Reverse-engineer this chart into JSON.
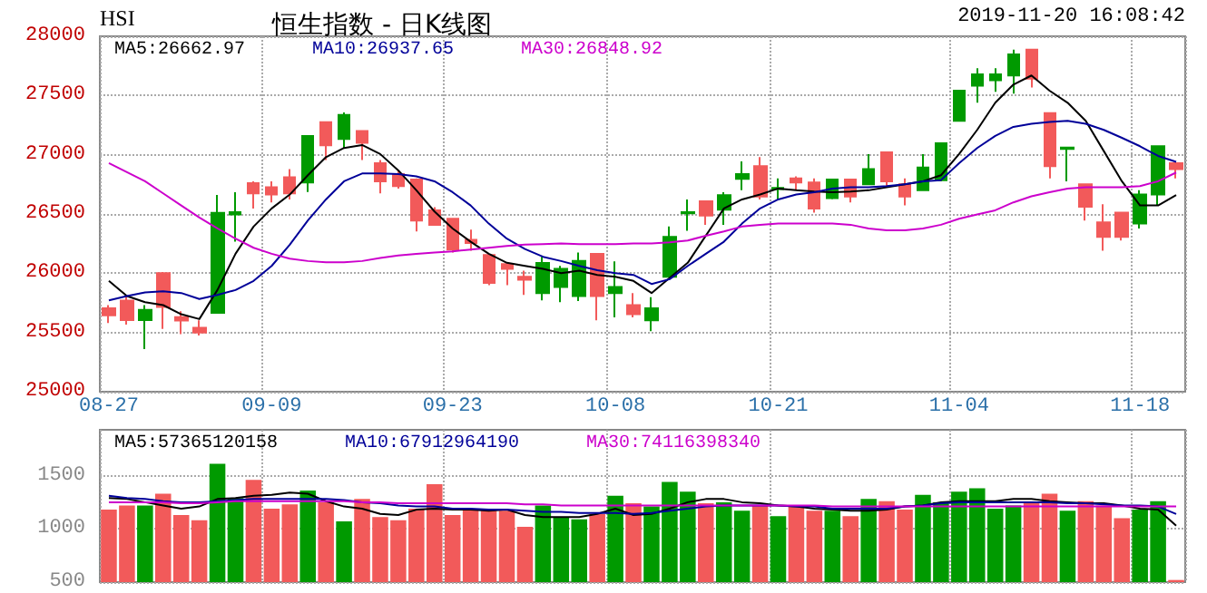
{
  "chart_data": [
    {
      "type": "candlestick",
      "title": "恒生指数 - 日K线图",
      "annotations": [
        "HSI",
        "2019-11-20 16:08:42"
      ],
      "categories": [
        "08-27",
        null,
        null,
        null,
        null,
        null,
        null,
        null,
        null,
        "09-09",
        null,
        null,
        null,
        null,
        null,
        null,
        null,
        null,
        null,
        "09-23",
        null,
        null,
        null,
        null,
        null,
        null,
        null,
        null,
        "10-08",
        null,
        null,
        null,
        null,
        null,
        null,
        null,
        null,
        "10-21",
        null,
        null,
        null,
        null,
        null,
        null,
        null,
        null,
        null,
        "11-04",
        null,
        null,
        null,
        null,
        null,
        null,
        null,
        null,
        null,
        "11-18",
        null,
        null
      ],
      "ohlc": [
        [
          25705,
          25730,
          25580,
          25645
        ],
        [
          25770,
          25807,
          25567,
          25605
        ],
        [
          25605,
          25730,
          25360,
          25690
        ],
        [
          26000,
          26010,
          25530,
          25715
        ],
        [
          25630,
          25680,
          25486,
          25600
        ],
        [
          25540,
          25603,
          25475,
          25500
        ],
        [
          25665,
          26660,
          25665,
          26510
        ],
        [
          26496,
          26684,
          26266,
          26515
        ],
        [
          26760,
          26776,
          26546,
          26675
        ],
        [
          26725,
          26776,
          26597,
          26665
        ],
        [
          26810,
          26878,
          26623,
          26675
        ],
        [
          26765,
          27165,
          26685,
          27158
        ],
        [
          27275,
          27280,
          26955,
          27080
        ],
        [
          27133,
          27357,
          27056,
          27337
        ],
        [
          27200,
          27205,
          26955,
          27100
        ],
        [
          26929,
          26955,
          26674,
          26776
        ],
        [
          26837,
          26863,
          26715,
          26735
        ],
        [
          26791,
          26800,
          26353,
          26445
        ],
        [
          26531,
          26557,
          26400,
          26409
        ],
        [
          26460,
          26465,
          26174,
          26200
        ],
        [
          26281,
          26368,
          26190,
          26256
        ],
        [
          26154,
          26160,
          25899,
          25919
        ],
        [
          26077,
          26080,
          25899,
          26037
        ],
        [
          25970,
          26021,
          25817,
          25945
        ],
        [
          25832,
          26138,
          25771,
          26087
        ],
        [
          25883,
          26062,
          25756,
          26037
        ],
        [
          25807,
          26174,
          25766,
          26103
        ],
        [
          26164,
          26170,
          25603,
          25807
        ],
        [
          25832,
          26100,
          25628,
          25883
        ],
        [
          25730,
          25832,
          25628,
          25654
        ],
        [
          25603,
          25797,
          25511,
          25705
        ],
        [
          25970,
          26394,
          25965,
          26307
        ],
        [
          26505,
          26623,
          26358,
          26515
        ],
        [
          26608,
          26612,
          26409,
          26486
        ],
        [
          26537,
          26684,
          26409,
          26659
        ],
        [
          26796,
          26944,
          26700,
          26837
        ],
        [
          26903,
          26980,
          26623,
          26648
        ],
        [
          26710,
          26801,
          26623,
          26720
        ],
        [
          26801,
          26817,
          26700,
          26766
        ],
        [
          26766,
          26801,
          26511,
          26546
        ],
        [
          26633,
          26795,
          26625,
          26791
        ],
        [
          26791,
          26795,
          26597,
          26648
        ],
        [
          26750,
          27005,
          26745,
          26878
        ],
        [
          27020,
          27025,
          26725,
          26776
        ],
        [
          26750,
          26801,
          26572,
          26648
        ],
        [
          26700,
          27005,
          26695,
          26893
        ],
        [
          26786,
          27100,
          26775,
          27097
        ],
        [
          27286,
          27545,
          27280,
          27541
        ],
        [
          27582,
          27730,
          27439,
          27679
        ],
        [
          27628,
          27730,
          27531,
          27679
        ],
        [
          27669,
          27888,
          27516,
          27847
        ],
        [
          27888,
          27892,
          27567,
          27643
        ],
        [
          27352,
          27357,
          26801,
          26903
        ],
        [
          27050,
          27060,
          26776,
          27060
        ],
        [
          26750,
          26755,
          26444,
          26562
        ],
        [
          26429,
          26582,
          26190,
          26307
        ],
        [
          26511,
          26520,
          26276,
          26307
        ],
        [
          26419,
          26700,
          26378,
          26664
        ],
        [
          26664,
          27075,
          26572,
          27072
        ],
        [
          26929,
          26935,
          26801,
          26878
        ]
      ],
      "colors": [
        "#f25a5a",
        "#f25a5a",
        "#009a00",
        "#f25a5a",
        "#f25a5a",
        "#f25a5a",
        "#009a00",
        "#009a00",
        "#f25a5a",
        "#f25a5a",
        "#f25a5a",
        "#009a00",
        "#f25a5a",
        "#009a00",
        "#f25a5a",
        "#f25a5a",
        "#f25a5a",
        "#f25a5a",
        "#f25a5a",
        "#f25a5a",
        "#f25a5a",
        "#f25a5a",
        "#f25a5a",
        "#f25a5a",
        "#009a00",
        "#009a00",
        "#009a00",
        "#f25a5a",
        "#009a00",
        "#f25a5a",
        "#009a00",
        "#009a00",
        "#009a00",
        "#f25a5a",
        "#009a00",
        "#009a00",
        "#f25a5a",
        "#009a00",
        "#f25a5a",
        "#f25a5a",
        "#009a00",
        "#f25a5a",
        "#009a00",
        "#f25a5a",
        "#f25a5a",
        "#009a00",
        "#009a00",
        "#009a00",
        "#009a00",
        "#009a00",
        "#009a00",
        "#f25a5a",
        "#f25a5a",
        "#009a00",
        "#f25a5a",
        "#f25a5a",
        "#f25a5a",
        "#009a00",
        "#009a00",
        "#f25a5a"
      ],
      "series": [
        {
          "type": "line",
          "name": "MA5:26662.97",
          "color": "#000000",
          "values": [
            25935,
            25807,
            25756,
            25731,
            25654,
            25613,
            25858,
            26164,
            26394,
            26547,
            26664,
            26827,
            26980,
            27057,
            27082,
            27006,
            26868,
            26700,
            26521,
            26378,
            26266,
            26164,
            26088,
            26062,
            26037,
            26001,
            26021,
            25986,
            25970,
            25935,
            25833,
            25960,
            26088,
            26317,
            26547,
            26623,
            26664,
            26715,
            26700,
            26690,
            26684,
            26690,
            26700,
            26725,
            26751,
            26776,
            26827,
            27006,
            27210,
            27439,
            27592,
            27669,
            27541,
            27439,
            27286,
            27031,
            26776,
            26572,
            26572,
            26660
          ]
        },
        {
          "type": "line",
          "name": "MA10:26937.65",
          "color": "#000099",
          "values": [
            25771,
            25807,
            25838,
            25848,
            25833,
            25782,
            25817,
            25858,
            25935,
            26062,
            26241,
            26445,
            26623,
            26776,
            26842,
            26842,
            26837,
            26817,
            26776,
            26684,
            26572,
            26419,
            26292,
            26205,
            26139,
            26103,
            26062,
            26026,
            26001,
            25986,
            25909,
            25950,
            26062,
            26164,
            26266,
            26419,
            26547,
            26623,
            26664,
            26684,
            26715,
            26725,
            26725,
            26735,
            26751,
            26776,
            26786,
            26929,
            27057,
            27159,
            27235,
            27261,
            27276,
            27286,
            27261,
            27210,
            27143,
            27072,
            26990,
            26940
          ]
        },
        {
          "type": "line",
          "name": "MA30:26848.92",
          "color": "#cc00cc",
          "values": [
            26929,
            26853,
            26776,
            26674,
            26572,
            26470,
            26378,
            26292,
            26215,
            26164,
            26123,
            26103,
            26093,
            26093,
            26103,
            26128,
            26149,
            26164,
            26174,
            26184,
            26200,
            26215,
            26230,
            26241,
            26246,
            26251,
            26246,
            26246,
            26246,
            26251,
            26251,
            26261,
            26276,
            26317,
            26353,
            26394,
            26409,
            26419,
            26419,
            26419,
            26419,
            26409,
            26378,
            26363,
            26363,
            26378,
            26409,
            26460,
            26496,
            26531,
            26598,
            26649,
            26684,
            26715,
            26725,
            26725,
            26725,
            26735,
            26776,
            26850
          ]
        }
      ],
      "ylim": [
        25000,
        28000
      ],
      "yticks": [
        25000,
        25500,
        26000,
        26500,
        27000,
        27500,
        28000
      ],
      "grid": true,
      "legend": "top left",
      "marker": "none"
    },
    {
      "type": "bar",
      "tick_labels": "y",
      "categories": [
        null,
        null,
        null,
        null,
        null,
        null,
        null,
        null,
        null,
        null,
        null,
        null,
        null,
        null,
        null,
        null,
        null,
        null,
        null,
        null,
        null,
        null,
        null,
        null,
        null,
        null,
        null,
        null,
        null,
        null,
        null,
        null,
        null,
        null,
        null,
        null,
        null,
        null,
        null,
        null,
        null,
        null,
        null,
        null,
        null,
        null,
        null,
        null,
        null,
        null,
        null,
        null,
        null,
        null,
        null,
        null,
        null,
        null,
        null,
        null
      ],
      "values": [
        1180,
        1220,
        1220,
        1330,
        1130,
        1080,
        1610,
        1290,
        1460,
        1190,
        1230,
        1360,
        1250,
        1070,
        1280,
        1110,
        1080,
        1190,
        1420,
        1130,
        1190,
        1170,
        1170,
        1020,
        1220,
        1110,
        1090,
        1140,
        1310,
        1240,
        1210,
        1440,
        1350,
        1240,
        1250,
        1170,
        1220,
        1120,
        1220,
        1170,
        1170,
        1120,
        1280,
        1260,
        1180,
        1320,
        1250,
        1350,
        1380,
        1190,
        1220,
        1250,
        1330,
        1170,
        1260,
        1220,
        1100,
        1180,
        1260,
        520
      ],
      "colors": [
        "#f25a5a",
        "#f25a5a",
        "#009a00",
        "#f25a5a",
        "#f25a5a",
        "#f25a5a",
        "#009a00",
        "#009a00",
        "#f25a5a",
        "#f25a5a",
        "#f25a5a",
        "#009a00",
        "#f25a5a",
        "#009a00",
        "#f25a5a",
        "#f25a5a",
        "#f25a5a",
        "#f25a5a",
        "#f25a5a",
        "#f25a5a",
        "#f25a5a",
        "#f25a5a",
        "#f25a5a",
        "#f25a5a",
        "#009a00",
        "#009a00",
        "#009a00",
        "#f25a5a",
        "#009a00",
        "#f25a5a",
        "#009a00",
        "#009a00",
        "#009a00",
        "#f25a5a",
        "#009a00",
        "#009a00",
        "#f25a5a",
        "#009a00",
        "#f25a5a",
        "#f25a5a",
        "#009a00",
        "#f25a5a",
        "#009a00",
        "#f25a5a",
        "#f25a5a",
        "#009a00",
        "#009a00",
        "#009a00",
        "#009a00",
        "#009a00",
        "#009a00",
        "#f25a5a",
        "#f25a5a",
        "#009a00",
        "#f25a5a",
        "#f25a5a",
        "#f25a5a",
        "#009a00",
        "#009a00",
        "#f25a5a"
      ],
      "series": [
        {
          "type": "line",
          "name": "MA5:57365120158",
          "color": "#000000",
          "values": [
            1290,
            1280,
            1250,
            1220,
            1190,
            1210,
            1280,
            1290,
            1310,
            1320,
            1340,
            1330,
            1260,
            1210,
            1190,
            1140,
            1130,
            1180,
            1190,
            1180,
            1180,
            1170,
            1180,
            1130,
            1110,
            1110,
            1110,
            1140,
            1190,
            1130,
            1140,
            1190,
            1250,
            1280,
            1280,
            1250,
            1240,
            1220,
            1210,
            1190,
            1180,
            1170,
            1170,
            1180,
            1210,
            1220,
            1250,
            1260,
            1260,
            1260,
            1280,
            1280,
            1260,
            1250,
            1240,
            1240,
            1220,
            1190,
            1180,
            1030
          ]
        },
        {
          "type": "line",
          "name": "MA10:67912964190",
          "color": "#000099",
          "values": [
            1310,
            1290,
            1280,
            1260,
            1250,
            1250,
            1260,
            1270,
            1280,
            1280,
            1280,
            1280,
            1280,
            1270,
            1250,
            1240,
            1220,
            1210,
            1210,
            1190,
            1190,
            1180,
            1180,
            1170,
            1160,
            1160,
            1150,
            1150,
            1150,
            1140,
            1150,
            1170,
            1190,
            1210,
            1220,
            1220,
            1220,
            1220,
            1210,
            1210,
            1190,
            1190,
            1190,
            1190,
            1210,
            1220,
            1240,
            1250,
            1250,
            1250,
            1250,
            1250,
            1250,
            1240,
            1240,
            1230,
            1220,
            1220,
            1210,
            1140
          ]
        },
        {
          "type": "line",
          "name": "MA30:74116398340",
          "color": "#cc00cc",
          "values": [
            1250,
            1250,
            1250,
            1250,
            1240,
            1240,
            1250,
            1260,
            1260,
            1260,
            1260,
            1260,
            1260,
            1260,
            1250,
            1250,
            1240,
            1240,
            1240,
            1240,
            1240,
            1240,
            1240,
            1230,
            1230,
            1220,
            1220,
            1220,
            1220,
            1220,
            1220,
            1220,
            1220,
            1220,
            1220,
            1220,
            1220,
            1220,
            1220,
            1220,
            1210,
            1210,
            1210,
            1210,
            1210,
            1210,
            1210,
            1210,
            1210,
            1210,
            1210,
            1210,
            1210,
            1210,
            1210,
            1210,
            1210,
            1210,
            1210,
            1210
          ]
        }
      ],
      "ylim": [
        500,
        1930
      ],
      "yticks": [
        500,
        1000,
        1500
      ],
      "grid": true,
      "legend": "top left",
      "marker": "none"
    }
  ]
}
